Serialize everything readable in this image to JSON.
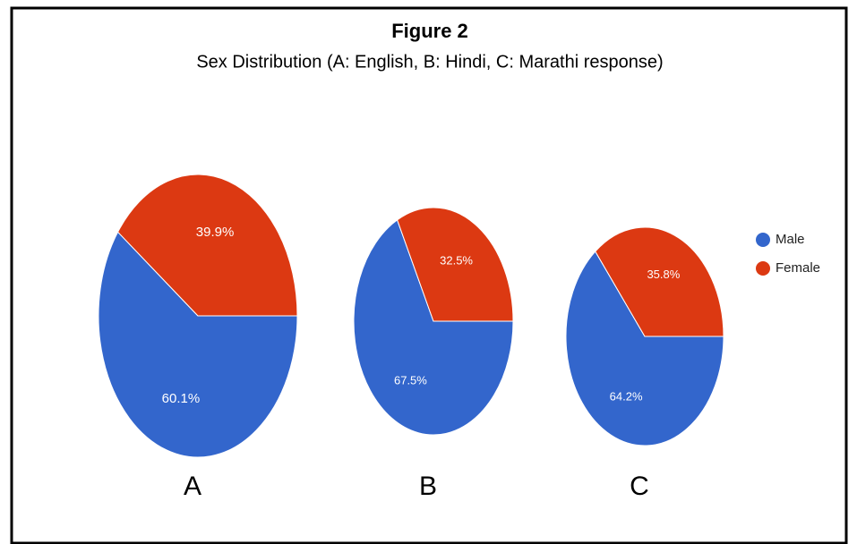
{
  "figure": {
    "title": "Figure 2",
    "subtitle": "Sex Distribution (A: English, B: Hindi, C: Marathi response)"
  },
  "chart_data": [
    {
      "type": "pie",
      "label": "A",
      "categories": [
        "Male",
        "Female"
      ],
      "values": [
        60.1,
        39.9
      ],
      "value_labels": [
        "60.1%",
        "39.9%"
      ],
      "colors": [
        "#3366cc",
        "#dc3912"
      ],
      "legend": "right"
    },
    {
      "type": "pie",
      "label": "B",
      "categories": [
        "Male",
        "Female"
      ],
      "values": [
        67.5,
        32.5
      ],
      "value_labels": [
        "67.5%",
        "32.5%"
      ],
      "colors": [
        "#3366cc",
        "#dc3912"
      ]
    },
    {
      "type": "pie",
      "label": "C",
      "categories": [
        "Male",
        "Female"
      ],
      "values": [
        64.2,
        35.8
      ],
      "value_labels": [
        "64.2%",
        "35.8%"
      ],
      "colors": [
        "#3366cc",
        "#dc3912"
      ]
    }
  ]
}
